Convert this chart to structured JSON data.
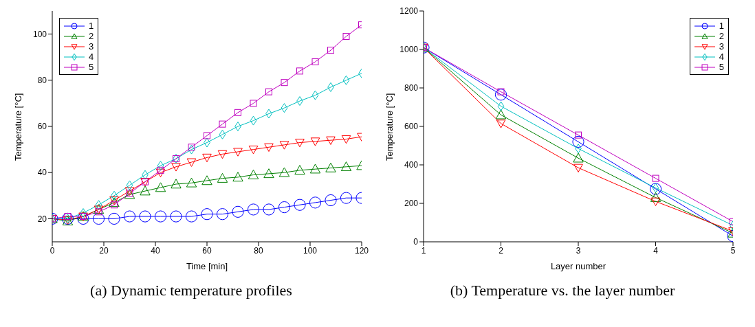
{
  "chart_data": [
    {
      "type": "line",
      "title": "(a) Dynamic temperature profiles",
      "xlabel": "Time [min]",
      "ylabel": "Temperature [°C]",
      "x": [
        0,
        6,
        12,
        18,
        24,
        30,
        36,
        42,
        48,
        54,
        60,
        66,
        72,
        78,
        84,
        90,
        96,
        102,
        108,
        114,
        120
      ],
      "series": [
        {
          "name": "1",
          "color": "#0000ff",
          "marker": "circle",
          "values": [
            20,
            20,
            20,
            20,
            20,
            21,
            21,
            21,
            21,
            21,
            22,
            22,
            23,
            24,
            24,
            25,
            26,
            27,
            28,
            29,
            29
          ]
        },
        {
          "name": "2",
          "color": "#008000",
          "marker": "triangle",
          "values": [
            20,
            19,
            21,
            24,
            27,
            30.5,
            32,
            33.5,
            35,
            35.5,
            36.5,
            37.5,
            38,
            39,
            39.5,
            40,
            41,
            41.5,
            42,
            42.5,
            43
          ]
        },
        {
          "name": "3",
          "color": "#ff0000",
          "marker": "triangle-down",
          "values": [
            20,
            19.5,
            21,
            24,
            28,
            32,
            36,
            40,
            42.5,
            44.5,
            46.5,
            48,
            49,
            50,
            51,
            52,
            53,
            53.5,
            54,
            54.5,
            55.5
          ]
        },
        {
          "name": "4",
          "color": "#00bfbf",
          "marker": "diamond",
          "values": [
            20,
            20,
            22.5,
            26,
            30,
            34.5,
            39,
            43,
            46,
            50,
            53,
            56.5,
            60,
            62.5,
            65.5,
            68,
            71,
            73.5,
            77,
            80,
            83
          ]
        },
        {
          "name": "5",
          "color": "#bf00bf",
          "marker": "square",
          "values": [
            20,
            21,
            21,
            23,
            26,
            31,
            36,
            41,
            46,
            51,
            56,
            61,
            66,
            70,
            75,
            79,
            84,
            88,
            93,
            99,
            104
          ]
        }
      ],
      "xlim": [
        0,
        120
      ],
      "xticks": [
        0,
        20,
        40,
        60,
        80,
        100,
        120
      ],
      "ylim": [
        10,
        110
      ],
      "yticks": [
        20,
        40,
        60,
        80,
        100
      ],
      "grid": false,
      "legend": "top left"
    },
    {
      "type": "line",
      "title": "(b) Temperature vs. the layer number",
      "xlabel": "Layer number",
      "ylabel": "Temperature [°C]",
      "x": [
        1,
        2,
        3,
        4,
        5
      ],
      "series": [
        {
          "name": "1",
          "color": "#0000ff",
          "marker": "circle",
          "values": [
            1010,
            765,
            520,
            275,
            30
          ]
        },
        {
          "name": "2",
          "color": "#008000",
          "marker": "triangle",
          "values": [
            1010,
            660,
            435,
            230,
            45
          ]
        },
        {
          "name": "3",
          "color": "#ff0000",
          "marker": "triangle-down",
          "values": [
            1010,
            615,
            385,
            210,
            55
          ]
        },
        {
          "name": "4",
          "color": "#00bfbf",
          "marker": "diamond",
          "values": [
            1010,
            705,
            485,
            280,
            85
          ]
        },
        {
          "name": "5",
          "color": "#bf00bf",
          "marker": "square",
          "values": [
            1010,
            780,
            555,
            330,
            105
          ]
        }
      ],
      "xlim": [
        1,
        5
      ],
      "xticks": [
        1,
        2,
        3,
        4,
        5
      ],
      "ylim": [
        0,
        1200
      ],
      "yticks": [
        0,
        200,
        400,
        600,
        800,
        1000,
        1200
      ],
      "grid": false,
      "legend": "top right"
    }
  ]
}
